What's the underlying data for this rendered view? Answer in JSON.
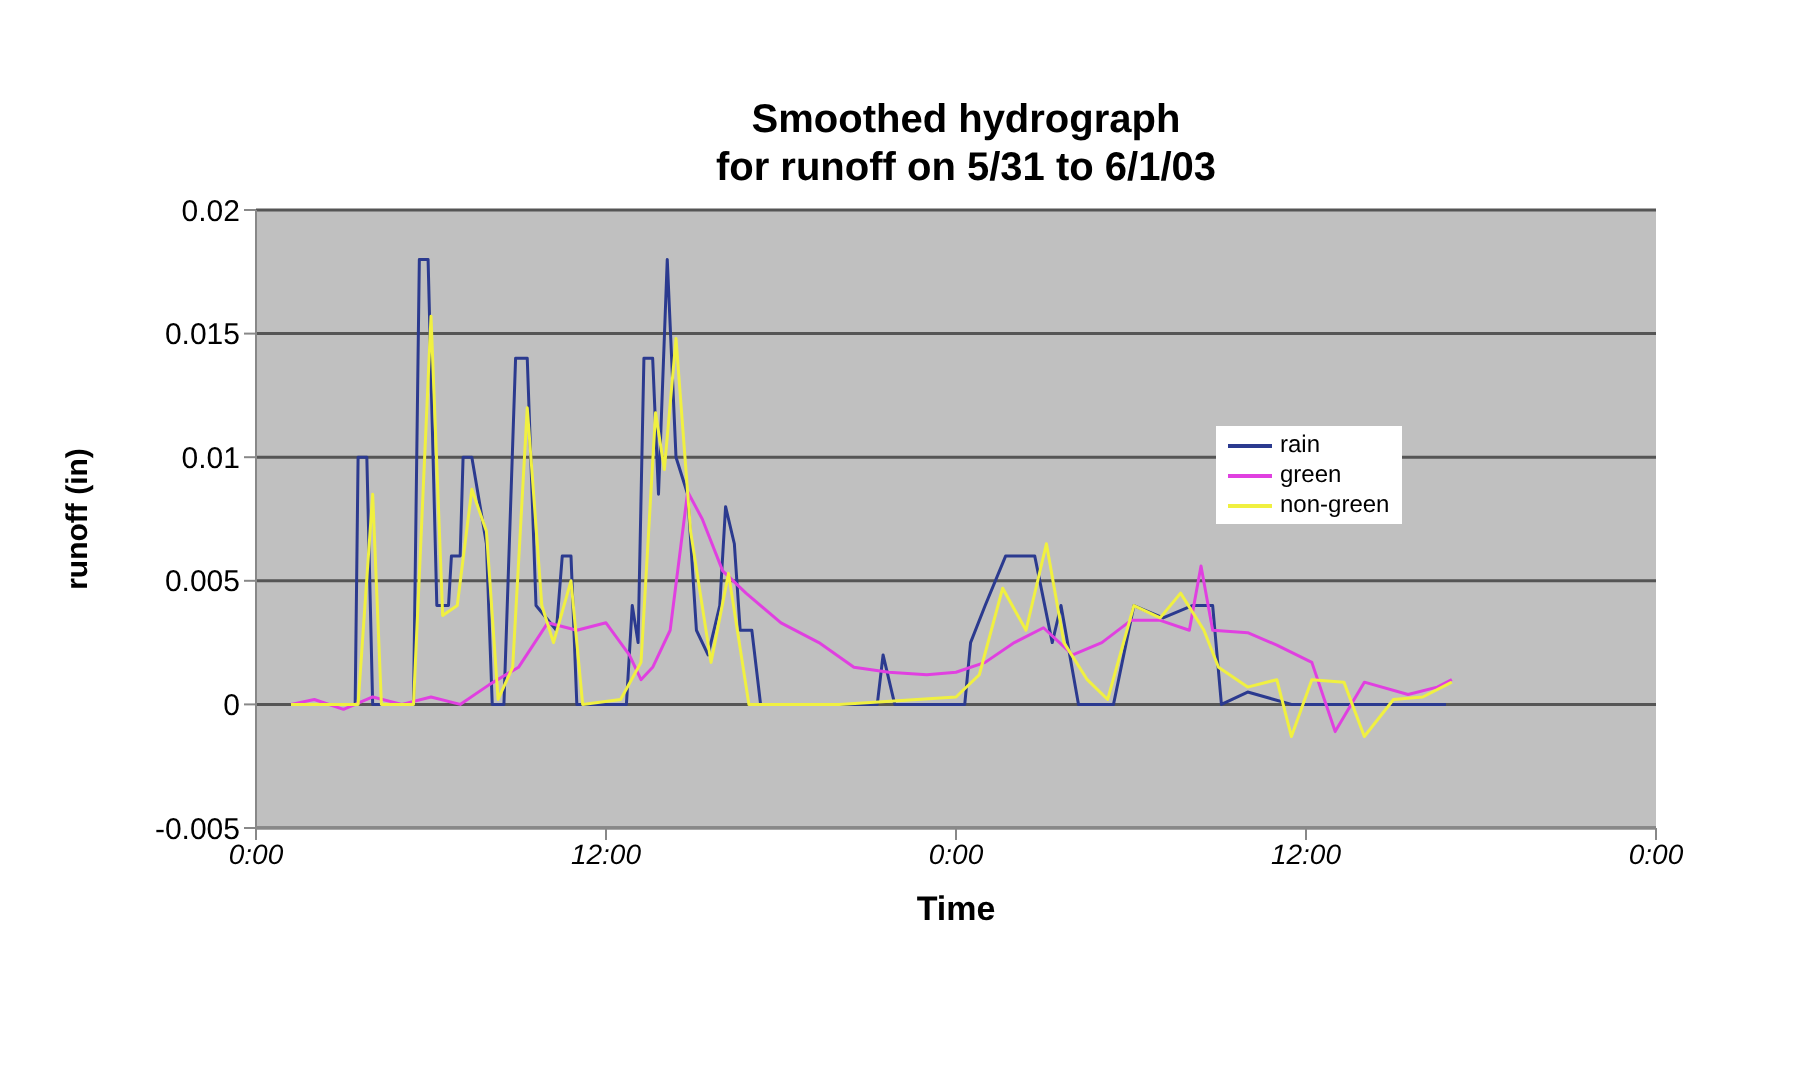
{
  "chart_data": {
    "type": "line",
    "title": "Smoothed hydrograph\nfor runoff on 5/31 to 6/1/03",
    "xlabel": "Time",
    "ylabel": "runoff (in)",
    "xlim": [
      "--05-31T00:00",
      "--06-02T00:00"
    ],
    "xticks": [
      {
        "value": "--05-31T00:00",
        "label": "0:00"
      },
      {
        "value": "--05-31T12:00",
        "label": "12:00"
      },
      {
        "value": "--06-01T00:00",
        "label": "0:00"
      },
      {
        "value": "--06-01T12:00",
        "label": "12:00"
      },
      {
        "value": "--06-02T00:00",
        "label": "0:00"
      }
    ],
    "ylim": [
      -0.005,
      0.02
    ],
    "yticks": [
      -0.005,
      0,
      0.005,
      0.01,
      0.015,
      0.02
    ],
    "grid": "y",
    "legend": "right",
    "marker": "none",
    "line_style": "solid",
    "series": [
      {
        "name": "rain",
        "color": "#2b3a8f",
        "x": [
          "--05-31T03:00",
          "--05-31T03:24",
          "--05-31T03:30",
          "--05-31T03:48",
          "--05-31T04:00",
          "--05-31T05:24",
          "--05-31T05:36",
          "--05-31T05:54",
          "--05-31T06:12",
          "--05-31T06:36",
          "--05-31T06:42",
          "--05-31T07:00",
          "--05-31T07:06",
          "--05-31T07:24",
          "--05-31T07:54",
          "--05-31T08:06",
          "--05-31T08:30",
          "--05-31T08:54",
          "--05-31T09:18",
          "--05-31T09:36",
          "--05-31T10:18",
          "--05-31T10:30",
          "--05-31T10:48",
          "--05-31T11:00",
          "--05-31T12:42",
          "--05-31T12:54",
          "--05-31T13:06",
          "--05-31T13:18",
          "--05-31T13:36",
          "--05-31T13:48",
          "--05-31T14:06",
          "--05-31T14:24",
          "--05-31T14:48",
          "--05-31T15:06",
          "--05-31T15:30",
          "--05-31T15:54",
          "--05-31T16:06",
          "--05-31T16:24",
          "--05-31T16:36",
          "--05-31T17:00",
          "--05-31T17:18",
          "--05-31T21:18",
          "--05-31T21:30",
          "--05-31T21:54",
          "--06-01T00:18",
          "--06-01T00:30",
          "--06-01T01:00",
          "--06-01T01:42",
          "--06-01T02:42",
          "--06-01T03:18",
          "--06-01T03:36",
          "--06-01T04:12",
          "--06-01T05:24",
          "--06-01T06:06",
          "--06-01T07:06",
          "--06-01T08:06",
          "--06-01T08:48",
          "--06-01T09:06",
          "--06-01T10:00",
          "--06-01T11:30",
          "--06-01T16:48"
        ],
        "values": [
          0,
          0,
          0.01,
          0.01,
          0,
          0,
          0.018,
          0.018,
          0.004,
          0.004,
          0.006,
          0.006,
          0.01,
          0.01,
          0.0065,
          0,
          0,
          0.014,
          0.014,
          0.004,
          0.003,
          0.006,
          0.006,
          0,
          0,
          0.004,
          0.0025,
          0.014,
          0.014,
          0.0085,
          0.018,
          0.01,
          0.0085,
          0.003,
          0.002,
          0.004,
          0.008,
          0.0065,
          0.003,
          0.003,
          0,
          0,
          0.002,
          0,
          0,
          0.0025,
          0.004,
          0.006,
          0.006,
          0.0025,
          0.004,
          0,
          0,
          0.004,
          0.0035,
          0.004,
          0.004,
          0,
          0.0005,
          0,
          0
        ]
      },
      {
        "name": "green",
        "color": "#e040e0",
        "x": [
          "--05-31T01:12",
          "--05-31T02:00",
          "--05-31T03:00",
          "--05-31T04:00",
          "--05-31T05:00",
          "--05-31T06:00",
          "--05-31T07:00",
          "--05-31T08:00",
          "--05-31T09:00",
          "--05-31T10:00",
          "--05-31T11:00",
          "--05-31T12:00",
          "--05-31T12:48",
          "--05-31T13:12",
          "--05-31T13:36",
          "--05-31T14:12",
          "--05-31T14:48",
          "--05-31T15:18",
          "--05-31T16:00",
          "--05-31T16:48",
          "--05-31T18:00",
          "--05-31T19:18",
          "--05-31T20:30",
          "--05-31T21:42",
          "--05-31T23:00",
          "--06-01T00:00",
          "--06-01T01:00",
          "--06-01T02:00",
          "--06-01T03:00",
          "--06-01T04:00",
          "--06-01T05:00",
          "--06-01T06:00",
          "--06-01T07:00",
          "--06-01T08:00",
          "--06-01T08:24",
          "--06-01T08:48",
          "--06-01T10:00",
          "--06-01T11:00",
          "--06-01T12:12",
          "--06-01T13:00",
          "--06-01T14:00",
          "--06-01T15:30",
          "--06-01T16:30",
          "--06-01T17:00"
        ],
        "values": [
          0,
          0.0002,
          -0.0002,
          0.0003,
          0,
          0.0003,
          0,
          0.0008,
          0.0015,
          0.0033,
          0.003,
          0.0033,
          0.002,
          0.001,
          0.0015,
          0.003,
          0.0086,
          0.0075,
          0.0054,
          0.0045,
          0.0033,
          0.0025,
          0.0015,
          0.0013,
          0.0012,
          0.0013,
          0.0017,
          0.0025,
          0.0031,
          0.002,
          0.0025,
          0.0034,
          0.0034,
          0.003,
          0.0056,
          0.003,
          0.0029,
          0.0024,
          0.0017,
          -0.0011,
          0.0009,
          0.0004,
          0.0007,
          0.001
        ]
      },
      {
        "name": "non-green",
        "color": "#f0f040",
        "x": [
          "--05-31T01:12",
          "--05-31T03:30",
          "--05-31T04:00",
          "--05-31T04:18",
          "--05-31T05:24",
          "--05-31T06:00",
          "--05-31T06:24",
          "--05-31T06:54",
          "--05-31T07:24",
          "--05-31T07:54",
          "--05-31T08:18",
          "--05-31T08:48",
          "--05-31T09:18",
          "--05-31T09:48",
          "--05-31T10:12",
          "--05-31T10:48",
          "--05-31T11:12",
          "--05-31T12:30",
          "--05-31T13:12",
          "--05-31T13:42",
          "--05-31T14:00",
          "--05-31T14:24",
          "--05-31T14:54",
          "--05-31T15:36",
          "--05-31T16:12",
          "--05-31T16:54",
          "--05-31T20:00",
          "--06-01T00:00",
          "--06-01T00:48",
          "--06-01T01:36",
          "--06-01T02:24",
          "--06-01T03:06",
          "--06-01T03:42",
          "--06-01T04:30",
          "--06-01T05:12",
          "--06-01T06:06",
          "--06-01T07:00",
          "--06-01T07:42",
          "--06-01T08:30",
          "--06-01T09:00",
          "--06-01T10:00",
          "--06-01T11:00",
          "--06-01T11:30",
          "--06-01T12:12",
          "--06-01T13:18",
          "--06-01T14:00",
          "--06-01T15:00",
          "--06-01T16:00",
          "--06-01T17:00"
        ],
        "values": [
          0,
          0,
          0.0085,
          0,
          0,
          0.0157,
          0.0036,
          0.004,
          0.0087,
          0.007,
          0.0002,
          0.0015,
          0.012,
          0.004,
          0.0025,
          0.005,
          0,
          0.0002,
          0.0017,
          0.0118,
          0.0095,
          0.0148,
          0.007,
          0.0017,
          0.0053,
          0,
          0,
          0.0003,
          0.0012,
          0.0047,
          0.003,
          0.0065,
          0.0025,
          0.001,
          0.0002,
          0.004,
          0.0035,
          0.0045,
          0.003,
          0.0015,
          0.0007,
          0.001,
          -0.0013,
          0.001,
          0.0009,
          -0.0013,
          0.0002,
          0.0003,
          0.0009
        ]
      }
    ]
  }
}
